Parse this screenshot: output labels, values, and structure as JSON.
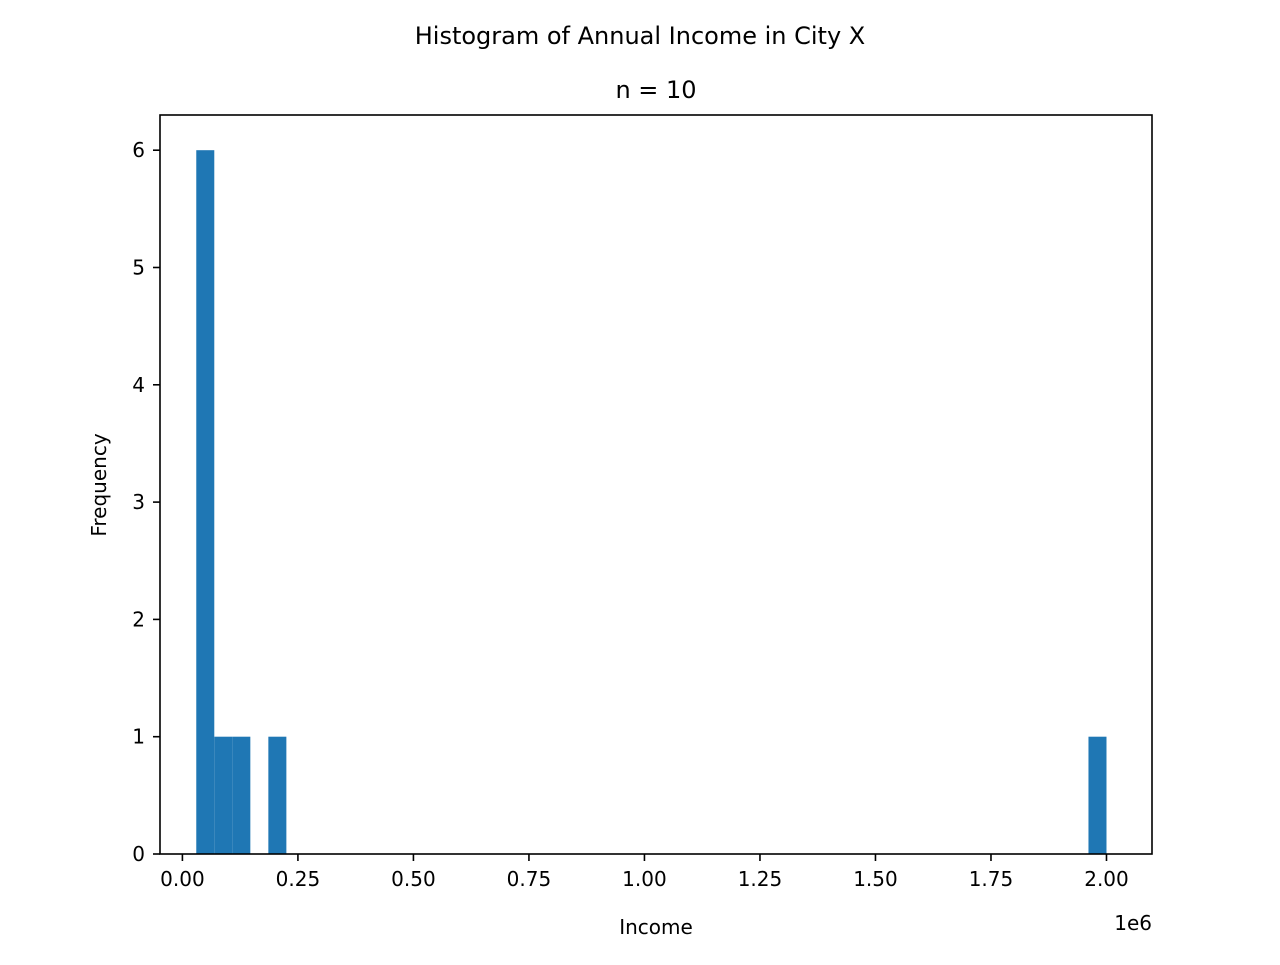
{
  "chart_data": {
    "type": "bar",
    "title": "Histogram of Annual Income in City X",
    "subtitle": "n = 10",
    "xlabel": "Income",
    "ylabel": "Frequency",
    "x_offset_label": "1e6",
    "x_tick_values": [
      0,
      0.25,
      0.5,
      0.75,
      1.0,
      1.25,
      1.5,
      1.75,
      2.0
    ],
    "x_tick_labels": [
      "0.00",
      "0.25",
      "0.50",
      "0.75",
      "1.00",
      "1.25",
      "1.50",
      "1.75",
      "2.00"
    ],
    "y_tick_values": [
      0,
      1,
      2,
      3,
      4,
      5,
      6
    ],
    "y_tick_labels": [
      "0",
      "1",
      "2",
      "3",
      "4",
      "5",
      "6"
    ],
    "xlim": [
      -0.0485,
      2.0985
    ],
    "ylim": [
      0,
      6.3
    ],
    "grid": false,
    "bar_color": "#1f77b4",
    "bins": [
      {
        "start": 0.03,
        "end": 0.069,
        "count": 6
      },
      {
        "start": 0.069,
        "end": 0.108,
        "count": 1
      },
      {
        "start": 0.108,
        "end": 0.147,
        "count": 1
      },
      {
        "start": 0.186,
        "end": 0.225,
        "count": 1
      },
      {
        "start": 1.961,
        "end": 2.0,
        "count": 1
      }
    ]
  }
}
